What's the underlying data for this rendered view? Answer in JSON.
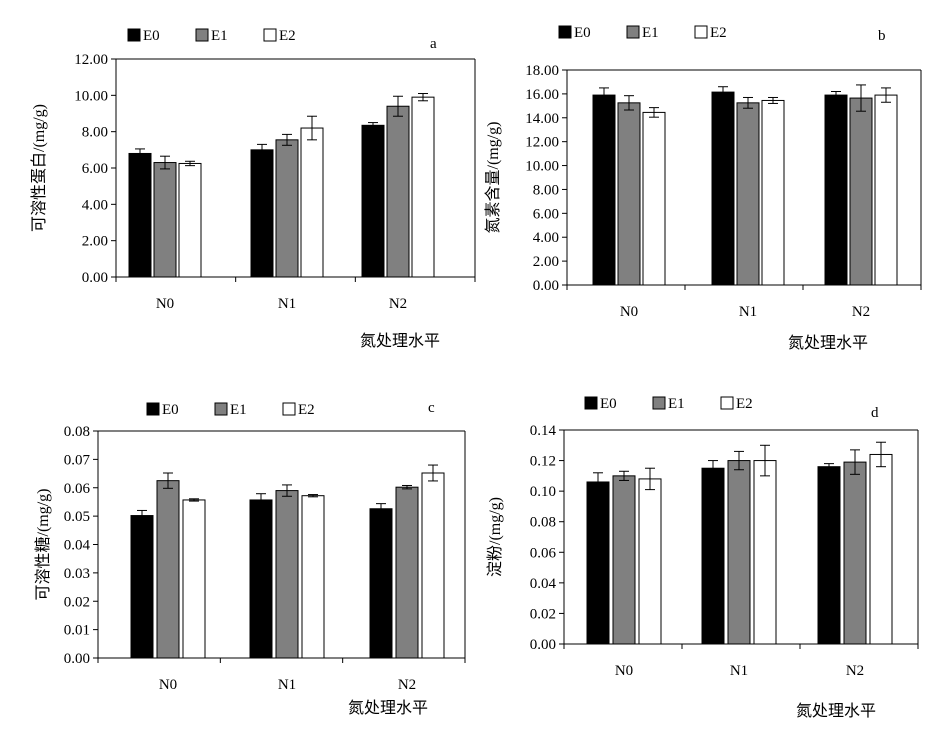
{
  "colors": {
    "E0": "#000000",
    "E1": "#808080",
    "E2": "#ffffff",
    "axis": "#000000"
  },
  "chart_data": [
    {
      "type": "bar",
      "panel_letter": "a",
      "ylabel": "可溶性蛋白/(mg/g)",
      "xlabel": "氮处理水平",
      "categories": [
        "N0",
        "N1",
        "N2"
      ],
      "ylim": [
        0,
        12
      ],
      "yticks": [
        "0.00",
        "2.00",
        "4.00",
        "6.00",
        "8.00",
        "10.00",
        "12.00"
      ],
      "legend_position": "top-left",
      "series": [
        {
          "name": "E0",
          "values": [
            6.8,
            7.0,
            8.35
          ],
          "errors": [
            0.25,
            0.3,
            0.15
          ]
        },
        {
          "name": "E1",
          "values": [
            6.3,
            7.55,
            9.4
          ],
          "errors": [
            0.35,
            0.3,
            0.55
          ]
        },
        {
          "name": "E2",
          "values": [
            6.25,
            8.2,
            9.9
          ],
          "errors": [
            0.12,
            0.65,
            0.2
          ]
        }
      ]
    },
    {
      "type": "bar",
      "panel_letter": "b",
      "ylabel": "氮素含量/(mg/g)",
      "xlabel": "氮处理水平",
      "categories": [
        "N0",
        "N1",
        "N2"
      ],
      "ylim": [
        0,
        18
      ],
      "yticks": [
        "0.00",
        "2.00",
        "4.00",
        "6.00",
        "8.00",
        "10.00",
        "12.00",
        "14.00",
        "16.00",
        "18.00"
      ],
      "legend_position": "top-left",
      "series": [
        {
          "name": "E0",
          "values": [
            15.9,
            16.15,
            15.9
          ],
          "errors": [
            0.6,
            0.45,
            0.3
          ]
        },
        {
          "name": "E1",
          "values": [
            15.25,
            15.25,
            15.65
          ],
          "errors": [
            0.6,
            0.45,
            1.1
          ]
        },
        {
          "name": "E2",
          "values": [
            14.45,
            15.45,
            15.9
          ],
          "errors": [
            0.4,
            0.25,
            0.6
          ]
        }
      ]
    },
    {
      "type": "bar",
      "panel_letter": "c",
      "ylabel": "可溶性糖/(mg/g)",
      "xlabel": "氮处理水平",
      "categories": [
        "N0",
        "N1",
        "N2"
      ],
      "ylim": [
        0,
        0.08
      ],
      "yticks": [
        "0.00",
        "0.01",
        "0.02",
        "0.03",
        "0.04",
        "0.05",
        "0.06",
        "0.07",
        "0.08"
      ],
      "legend_position": "top-left",
      "series": [
        {
          "name": "E0",
          "values": [
            0.0502,
            0.0557,
            0.0526
          ],
          "errors": [
            0.0018,
            0.0022,
            0.0018
          ]
        },
        {
          "name": "E1",
          "values": [
            0.0625,
            0.059,
            0.0602
          ],
          "errors": [
            0.0027,
            0.002,
            0.0006
          ]
        },
        {
          "name": "E2",
          "values": [
            0.0557,
            0.0572,
            0.0652
          ],
          "errors": [
            0.0004,
            0.0004,
            0.0028
          ]
        }
      ]
    },
    {
      "type": "bar",
      "panel_letter": "d",
      "ylabel": "淀粉/(mg/g)",
      "xlabel": "氮处理水平",
      "categories": [
        "N0",
        "N1",
        "N2"
      ],
      "ylim": [
        0,
        0.14
      ],
      "yticks": [
        "0.00",
        "0.02",
        "0.04",
        "0.06",
        "0.08",
        "0.10",
        "0.12",
        "0.14"
      ],
      "legend_position": "top-left",
      "series": [
        {
          "name": "E0",
          "values": [
            0.106,
            0.115,
            0.116
          ],
          "errors": [
            0.006,
            0.005,
            0.002
          ]
        },
        {
          "name": "E1",
          "values": [
            0.11,
            0.12,
            0.119
          ],
          "errors": [
            0.003,
            0.006,
            0.008
          ]
        },
        {
          "name": "E2",
          "values": [
            0.108,
            0.12,
            0.124
          ],
          "errors": [
            0.007,
            0.01,
            0.008
          ]
        }
      ]
    }
  ]
}
